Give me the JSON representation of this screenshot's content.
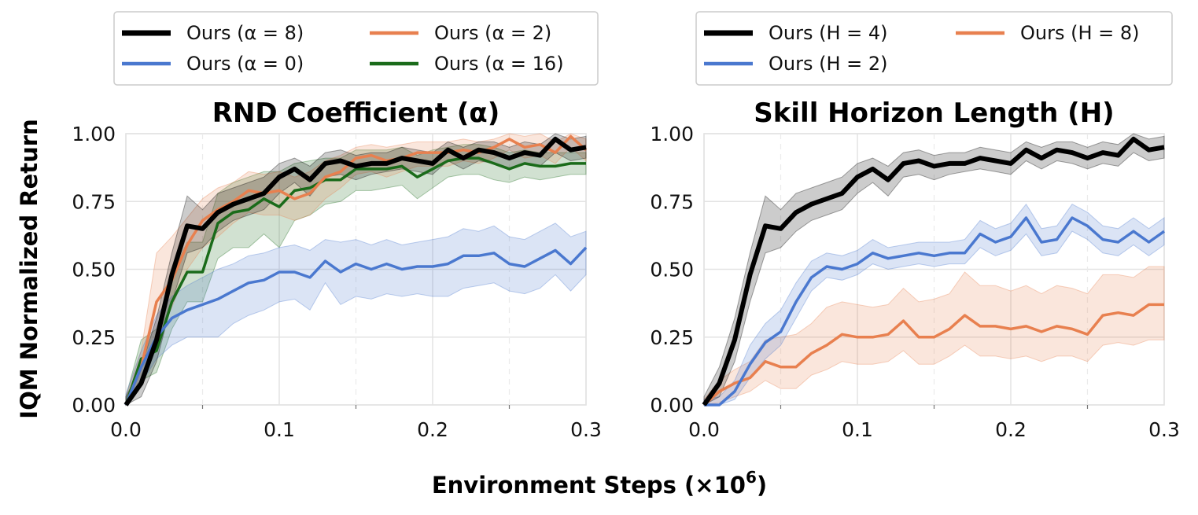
{
  "figure": {
    "ylabel": "IQM Normalized Return",
    "xlabel_main": "Environment Steps (×10",
    "xlabel_exp": "6",
    "xlabel_close": ")"
  },
  "chart_data": [
    {
      "type": "line",
      "title": "RND Coefficient (α)",
      "xlim": [
        0,
        0.3
      ],
      "ylim": [
        0,
        1
      ],
      "x_ticks": [
        "0.0",
        "0.1",
        "0.2",
        "0.3"
      ],
      "y_ticks": [
        "0.00",
        "0.25",
        "0.50",
        "0.75",
        "1.00"
      ],
      "legend_position": "top",
      "legend_columns": 2,
      "x": [
        0,
        0.01,
        0.02,
        0.03,
        0.04,
        0.05,
        0.06,
        0.07,
        0.08,
        0.09,
        0.1,
        0.11,
        0.12,
        0.13,
        0.14,
        0.15,
        0.16,
        0.17,
        0.18,
        0.19,
        0.2,
        0.21,
        0.22,
        0.23,
        0.24,
        0.25,
        0.26,
        0.27,
        0.28,
        0.29,
        0.3
      ],
      "series": [
        {
          "name": "Ours (α = 8)",
          "color": "#000000",
          "width": 6,
          "values": [
            0.0,
            0.08,
            0.24,
            0.48,
            0.66,
            0.65,
            0.71,
            0.74,
            0.76,
            0.78,
            0.84,
            0.87,
            0.83,
            0.89,
            0.9,
            0.88,
            0.89,
            0.89,
            0.91,
            0.9,
            0.89,
            0.94,
            0.91,
            0.94,
            0.93,
            0.91,
            0.93,
            0.92,
            0.98,
            0.94,
            0.95
          ],
          "lower": [
            0.0,
            0.03,
            0.16,
            0.38,
            0.56,
            0.58,
            0.64,
            0.68,
            0.7,
            0.72,
            0.78,
            0.82,
            0.77,
            0.84,
            0.85,
            0.83,
            0.85,
            0.86,
            0.87,
            0.86,
            0.85,
            0.9,
            0.87,
            0.9,
            0.89,
            0.87,
            0.89,
            0.88,
            0.93,
            0.9,
            0.91
          ],
          "upper": [
            0.03,
            0.14,
            0.32,
            0.56,
            0.77,
            0.72,
            0.78,
            0.8,
            0.82,
            0.84,
            0.89,
            0.91,
            0.88,
            0.93,
            0.94,
            0.92,
            0.93,
            0.93,
            0.95,
            0.94,
            0.93,
            0.97,
            0.95,
            0.97,
            0.97,
            0.95,
            0.97,
            0.96,
            1.0,
            0.98,
            0.99
          ]
        },
        {
          "name": "Ours (α = 0)",
          "color": "#4a78cf",
          "width": 3.5,
          "values": [
            0.0,
            0.14,
            0.25,
            0.32,
            0.35,
            0.37,
            0.39,
            0.42,
            0.45,
            0.46,
            0.49,
            0.49,
            0.47,
            0.53,
            0.49,
            0.52,
            0.5,
            0.52,
            0.5,
            0.51,
            0.51,
            0.52,
            0.55,
            0.55,
            0.56,
            0.52,
            0.51,
            0.54,
            0.57,
            0.52,
            0.58
          ],
          "lower": [
            0.0,
            0.08,
            0.17,
            0.22,
            0.25,
            0.25,
            0.25,
            0.3,
            0.33,
            0.35,
            0.38,
            0.39,
            0.35,
            0.45,
            0.37,
            0.4,
            0.39,
            0.41,
            0.4,
            0.41,
            0.4,
            0.4,
            0.43,
            0.44,
            0.45,
            0.42,
            0.41,
            0.43,
            0.48,
            0.42,
            0.48
          ],
          "upper": [
            0.04,
            0.2,
            0.33,
            0.4,
            0.44,
            0.47,
            0.5,
            0.52,
            0.55,
            0.56,
            0.58,
            0.59,
            0.57,
            0.61,
            0.6,
            0.61,
            0.59,
            0.61,
            0.59,
            0.6,
            0.61,
            0.62,
            0.65,
            0.64,
            0.66,
            0.62,
            0.61,
            0.64,
            0.67,
            0.62,
            0.64
          ]
        },
        {
          "name": "Ours (α = 2)",
          "color": "#e8804f",
          "width": 3.5,
          "values": [
            0.0,
            0.14,
            0.38,
            0.46,
            0.59,
            0.68,
            0.72,
            0.75,
            0.79,
            0.78,
            0.79,
            0.76,
            0.78,
            0.84,
            0.86,
            0.91,
            0.92,
            0.9,
            0.91,
            0.93,
            0.93,
            0.93,
            0.94,
            0.93,
            0.95,
            0.98,
            0.95,
            0.96,
            0.93,
            0.99,
            0.94
          ],
          "lower": [
            0.0,
            0.08,
            0.24,
            0.36,
            0.5,
            0.58,
            0.62,
            0.67,
            0.71,
            0.7,
            0.7,
            0.68,
            0.7,
            0.76,
            0.8,
            0.85,
            0.86,
            0.84,
            0.86,
            0.88,
            0.88,
            0.88,
            0.9,
            0.89,
            0.91,
            0.94,
            0.91,
            0.92,
            0.89,
            0.95,
            0.9
          ],
          "upper": [
            0.03,
            0.2,
            0.56,
            0.62,
            0.69,
            0.76,
            0.8,
            0.82,
            0.86,
            0.85,
            0.86,
            0.84,
            0.86,
            0.9,
            0.92,
            0.95,
            0.96,
            0.95,
            0.96,
            0.97,
            0.97,
            0.97,
            0.98,
            0.97,
            0.98,
            1.0,
            0.99,
            1.0,
            0.97,
            1.0,
            0.98
          ]
        },
        {
          "name": "Ours (α = 16)",
          "color": "#1a6b1a",
          "width": 3.5,
          "values": [
            0.0,
            0.17,
            0.2,
            0.38,
            0.49,
            0.49,
            0.67,
            0.71,
            0.72,
            0.76,
            0.73,
            0.79,
            0.8,
            0.83,
            0.83,
            0.87,
            0.87,
            0.87,
            0.88,
            0.84,
            0.87,
            0.9,
            0.91,
            0.91,
            0.89,
            0.87,
            0.89,
            0.88,
            0.88,
            0.89,
            0.89
          ],
          "lower": [
            0.0,
            0.09,
            0.12,
            0.28,
            0.38,
            0.38,
            0.54,
            0.58,
            0.58,
            0.63,
            0.58,
            0.68,
            0.7,
            0.74,
            0.75,
            0.79,
            0.79,
            0.8,
            0.81,
            0.76,
            0.8,
            0.84,
            0.85,
            0.85,
            0.83,
            0.82,
            0.84,
            0.83,
            0.84,
            0.85,
            0.85
          ],
          "upper": [
            0.03,
            0.24,
            0.28,
            0.48,
            0.6,
            0.6,
            0.78,
            0.82,
            0.84,
            0.86,
            0.86,
            0.89,
            0.9,
            0.91,
            0.91,
            0.94,
            0.94,
            0.94,
            0.95,
            0.92,
            0.94,
            0.95,
            0.96,
            0.96,
            0.95,
            0.93,
            0.94,
            0.93,
            0.93,
            0.93,
            0.93
          ]
        }
      ]
    },
    {
      "type": "line",
      "title": "Skill Horizon Length (H)",
      "xlim": [
        0,
        0.3
      ],
      "ylim": [
        0,
        1
      ],
      "x_ticks": [
        "0.0",
        "0.1",
        "0.2",
        "0.3"
      ],
      "y_ticks": [
        "0.00",
        "0.25",
        "0.50",
        "0.75",
        "1.00"
      ],
      "legend_position": "top",
      "legend_columns": 2,
      "x": [
        0,
        0.01,
        0.02,
        0.03,
        0.04,
        0.05,
        0.06,
        0.07,
        0.08,
        0.09,
        0.1,
        0.11,
        0.12,
        0.13,
        0.14,
        0.15,
        0.16,
        0.17,
        0.18,
        0.19,
        0.2,
        0.21,
        0.22,
        0.23,
        0.24,
        0.25,
        0.26,
        0.27,
        0.28,
        0.29,
        0.3
      ],
      "series": [
        {
          "name": "Ours (H = 4)",
          "color": "#000000",
          "width": 6,
          "values": [
            0.0,
            0.08,
            0.24,
            0.48,
            0.66,
            0.65,
            0.71,
            0.74,
            0.76,
            0.78,
            0.84,
            0.87,
            0.83,
            0.89,
            0.9,
            0.88,
            0.89,
            0.89,
            0.91,
            0.9,
            0.89,
            0.94,
            0.91,
            0.94,
            0.93,
            0.91,
            0.93,
            0.92,
            0.98,
            0.94,
            0.95
          ],
          "lower": [
            0.0,
            0.03,
            0.16,
            0.38,
            0.56,
            0.58,
            0.64,
            0.68,
            0.7,
            0.72,
            0.78,
            0.82,
            0.77,
            0.84,
            0.85,
            0.83,
            0.85,
            0.86,
            0.87,
            0.86,
            0.85,
            0.9,
            0.87,
            0.9,
            0.89,
            0.87,
            0.89,
            0.88,
            0.93,
            0.9,
            0.91
          ],
          "upper": [
            0.03,
            0.14,
            0.32,
            0.56,
            0.77,
            0.72,
            0.78,
            0.8,
            0.82,
            0.84,
            0.89,
            0.91,
            0.88,
            0.93,
            0.94,
            0.92,
            0.93,
            0.93,
            0.95,
            0.94,
            0.93,
            0.97,
            0.95,
            0.97,
            0.97,
            0.95,
            0.97,
            0.96,
            1.0,
            0.98,
            0.99
          ]
        },
        {
          "name": "Ours (H = 2)",
          "color": "#4a78cf",
          "width": 3.5,
          "values": [
            0.0,
            0.0,
            0.05,
            0.15,
            0.23,
            0.27,
            0.38,
            0.47,
            0.51,
            0.5,
            0.52,
            0.56,
            0.54,
            0.55,
            0.56,
            0.55,
            0.56,
            0.56,
            0.63,
            0.6,
            0.62,
            0.69,
            0.6,
            0.61,
            0.69,
            0.66,
            0.61,
            0.6,
            0.64,
            0.6,
            0.64
          ],
          "lower": [
            0.0,
            0.0,
            0.02,
            0.1,
            0.17,
            0.22,
            0.32,
            0.42,
            0.47,
            0.46,
            0.48,
            0.52,
            0.5,
            0.51,
            0.52,
            0.51,
            0.52,
            0.52,
            0.58,
            0.55,
            0.57,
            0.63,
            0.55,
            0.56,
            0.64,
            0.61,
            0.56,
            0.55,
            0.59,
            0.55,
            0.59
          ],
          "upper": [
            0.02,
            0.03,
            0.09,
            0.22,
            0.3,
            0.35,
            0.45,
            0.53,
            0.56,
            0.55,
            0.57,
            0.61,
            0.58,
            0.59,
            0.6,
            0.6,
            0.6,
            0.61,
            0.68,
            0.65,
            0.67,
            0.74,
            0.65,
            0.66,
            0.74,
            0.71,
            0.66,
            0.65,
            0.69,
            0.65,
            0.69
          ]
        },
        {
          "name": "Ours (H = 8)",
          "color": "#e8804f",
          "width": 3.5,
          "values": [
            0.0,
            0.05,
            0.08,
            0.1,
            0.16,
            0.14,
            0.14,
            0.19,
            0.22,
            0.26,
            0.25,
            0.25,
            0.26,
            0.31,
            0.25,
            0.25,
            0.28,
            0.33,
            0.29,
            0.29,
            0.28,
            0.29,
            0.27,
            0.29,
            0.28,
            0.26,
            0.33,
            0.34,
            0.33,
            0.37,
            0.37
          ],
          "lower": [
            0.0,
            0.01,
            0.03,
            0.05,
            0.09,
            0.06,
            0.06,
            0.11,
            0.13,
            0.16,
            0.15,
            0.15,
            0.16,
            0.2,
            0.15,
            0.15,
            0.18,
            0.22,
            0.18,
            0.18,
            0.17,
            0.18,
            0.16,
            0.18,
            0.18,
            0.16,
            0.22,
            0.23,
            0.22,
            0.24,
            0.24
          ],
          "upper": [
            0.02,
            0.09,
            0.13,
            0.16,
            0.24,
            0.25,
            0.26,
            0.3,
            0.36,
            0.38,
            0.37,
            0.36,
            0.37,
            0.43,
            0.38,
            0.39,
            0.41,
            0.49,
            0.44,
            0.44,
            0.42,
            0.44,
            0.41,
            0.44,
            0.43,
            0.41,
            0.48,
            0.48,
            0.47,
            0.51,
            0.51
          ]
        }
      ]
    }
  ]
}
